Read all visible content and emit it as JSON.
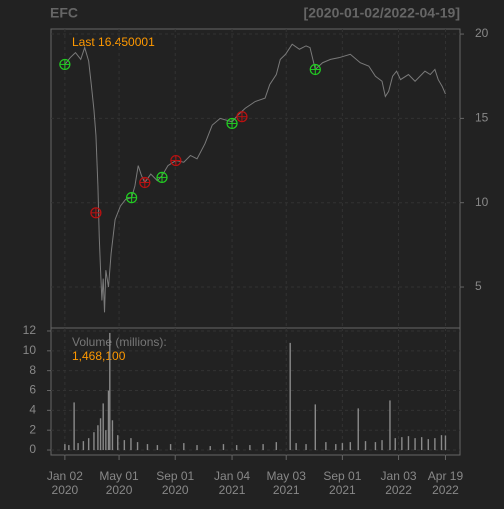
{
  "chart_data": [
    {
      "type": "line",
      "title": "EFC",
      "subtitle": "[2020-01-02/2022-04-19]",
      "annotation": "Last 16.450001",
      "xlim": [
        -21,
        598
      ],
      "ylim": [
        2.57,
        20.3
      ],
      "yticks": [
        5,
        10,
        15,
        20
      ],
      "grid": true,
      "x": [
        0,
        8,
        16,
        24,
        30,
        36,
        40,
        44,
        47,
        50,
        52,
        54,
        56,
        58,
        60,
        62,
        66,
        70,
        76,
        84,
        92,
        101,
        106,
        111,
        116,
        121,
        130,
        140,
        147,
        156,
        168,
        180,
        190,
        200,
        212,
        223,
        235,
        253,
        262,
        273,
        288,
        303,
        310,
        320,
        326,
        334,
        344,
        355,
        365,
        371,
        379,
        390,
        402,
        415,
        432,
        447,
        460,
        470,
        480,
        485,
        490,
        496,
        502,
        508,
        520,
        530,
        545,
        553,
        560,
        565,
        571,
        576
      ],
      "series": [
        {
          "color": "#7a7a7a",
          "values": [
            18.2,
            18.6,
            18.9,
            18.5,
            19.2,
            18.4,
            17,
            15.5,
            14,
            11,
            8,
            6,
            4.2,
            5.5,
            3.5,
            6,
            5,
            7,
            9,
            9.8,
            10.2,
            10.3,
            11,
            12.2,
            11.6,
            11.2,
            11.7,
            11.3,
            11.6,
            12.2,
            12.5,
            12.4,
            12.8,
            12.6,
            13.5,
            14.6,
            15,
            14.8,
            15.2,
            15.6,
            16,
            16.2,
            17,
            17.6,
            18.5,
            18.8,
            19.4,
            19.1,
            19.3,
            19.2,
            17.9,
            18.3,
            18.5,
            18.6,
            18.8,
            18.3,
            18.1,
            17.5,
            17.2,
            16.3,
            16.6,
            17.5,
            17.8,
            17.3,
            17.6,
            17.2,
            17.8,
            17.6,
            17.9,
            17.3,
            16.9,
            16.45
          ]
        },
        {
          "type": "scatter",
          "color": "#22cc22",
          "x": [
            0,
            101,
            147,
            253,
            379
          ],
          "values": [
            18.2,
            10.3,
            11.5,
            14.7,
            17.9
          ]
        },
        {
          "type": "scatter",
          "color": "#bb1111",
          "x": [
            47,
            121,
            168,
            268
          ],
          "values": [
            9.4,
            11.2,
            12.5,
            15.1
          ]
        }
      ]
    },
    {
      "type": "bar",
      "annotation": "Volume (millions):",
      "annotation_value": "1,468,100",
      "color": "#8a8a8a",
      "xlim": [
        -21,
        598
      ],
      "ylim": [
        -0.5,
        12.3
      ],
      "yticks": [
        0,
        2,
        4,
        6,
        8,
        10,
        12
      ],
      "grid": true,
      "xticks": [
        {
          "value": 0,
          "label": "Jan 02\n2020"
        },
        {
          "value": 82,
          "label": "May 01\n2020"
        },
        {
          "value": 167,
          "label": "Sep 01\n2020"
        },
        {
          "value": 253,
          "label": "Jan 04\n2021"
        },
        {
          "value": 335,
          "label": "May 03\n2021"
        },
        {
          "value": 420,
          "label": "Sep 01\n2021"
        },
        {
          "value": 505,
          "label": "Jan 03\n2022"
        },
        {
          "value": 576,
          "label": "Apr 19\n2022"
        }
      ],
      "x": [
        0,
        6,
        14,
        20,
        28,
        36,
        44,
        50,
        54,
        58,
        62,
        66,
        68,
        72,
        80,
        90,
        100,
        110,
        125,
        140,
        160,
        180,
        200,
        220,
        240,
        260,
        280,
        300,
        320,
        341,
        350,
        365,
        379,
        395,
        410,
        420,
        432,
        444,
        455,
        470,
        480,
        492,
        500,
        510,
        520,
        530,
        540,
        550,
        560,
        570,
        576
      ],
      "values": [
        0.6,
        0.5,
        4.8,
        0.7,
        0.9,
        1.2,
        1.8,
        2.5,
        3.2,
        4.7,
        2,
        6,
        11.8,
        3,
        1.5,
        1,
        1.2,
        0.8,
        0.6,
        0.5,
        0.6,
        0.7,
        0.5,
        0.4,
        0.6,
        0.5,
        0.5,
        0.6,
        0.8,
        10.8,
        0.7,
        0.6,
        4.6,
        0.8,
        0.6,
        0.7,
        0.8,
        4.2,
        0.9,
        0.8,
        1,
        5,
        1.2,
        1.3,
        1.4,
        1.2,
        1.3,
        1.1,
        1.2,
        1.5,
        1.47
      ]
    }
  ]
}
